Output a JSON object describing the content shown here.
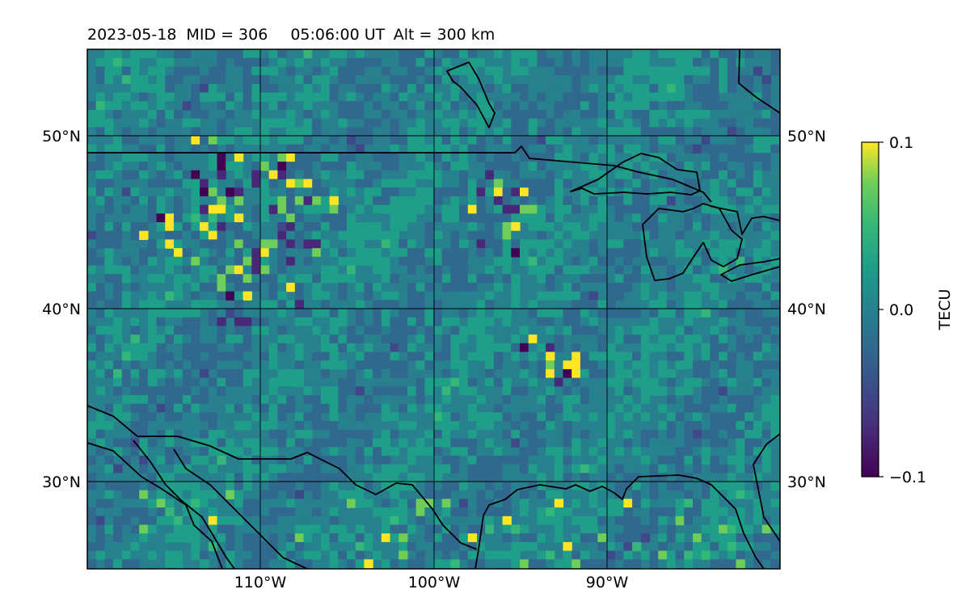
{
  "title": {
    "date": "2023-05-18",
    "mid": "MID = 306",
    "time": "05:06:00  UT",
    "alt": "Alt = 300 km"
  },
  "map": {
    "lat_range": [
      25,
      55
    ],
    "lon_range": [
      -120,
      -80
    ],
    "lat_gridlines": [
      30,
      40,
      50
    ],
    "lon_gridlines": [
      -110,
      -100,
      -90
    ],
    "lat_labels_left": [
      "30°N",
      "40°N",
      "50°N"
    ],
    "lat_labels_right": [
      "30°N",
      "40°N",
      "50°N"
    ],
    "lon_labels": [
      "110°W",
      "100°W",
      "90°W"
    ]
  },
  "colorbar": {
    "label": "TECU",
    "colormap": "viridis",
    "vmin": -0.1,
    "vmax": 0.1,
    "ticks": [
      "0.1",
      "0.0",
      "−0.1"
    ]
  },
  "colors": {
    "background_field": "#2a7f8e",
    "coastline": "#000000",
    "gridline": "#000000"
  }
}
